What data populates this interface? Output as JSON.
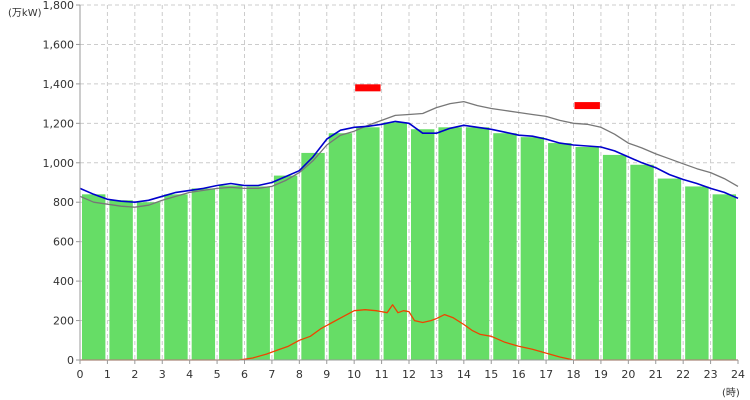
{
  "chart_data": {
    "type": "bar",
    "unit_label": "(万kW)",
    "x_unit_label": "(時)",
    "xlim": [
      0,
      24
    ],
    "ylim": [
      0,
      1800
    ],
    "y_ticks": [
      "0",
      "200",
      "400",
      "600",
      "800",
      "1,000",
      "1,200",
      "1,400",
      "1,600",
      "1,800"
    ],
    "y_tick_values": [
      0,
      200,
      400,
      600,
      800,
      1000,
      1200,
      1400,
      1600,
      1800
    ],
    "x_ticks": [
      "0",
      "1",
      "2",
      "3",
      "4",
      "5",
      "6",
      "7",
      "8",
      "9",
      "10",
      "11",
      "12",
      "13",
      "14",
      "15",
      "16",
      "17",
      "18",
      "19",
      "20",
      "21",
      "22",
      "23",
      "24"
    ],
    "grid": true,
    "colors": {
      "bars": "#66dd66",
      "blue_line": "#0000cc",
      "gray_line": "#777777",
      "orange_line": "#ee4400",
      "markers": "#ff0000",
      "grid": "#cccccc"
    },
    "bars": {
      "hours": [
        0,
        1,
        2,
        3,
        4,
        5,
        6,
        7,
        8,
        9,
        10,
        11,
        12,
        13,
        14,
        15,
        16,
        17,
        18,
        19,
        20,
        21,
        22,
        23
      ],
      "values": [
        840,
        810,
        800,
        840,
        870,
        885,
        880,
        935,
        1050,
        1150,
        1180,
        1205,
        1170,
        1180,
        1180,
        1150,
        1130,
        1100,
        1080,
        1040,
        990,
        920,
        880,
        840
      ]
    },
    "series": [
      {
        "color": "blue_line",
        "x": [
          0,
          0.5,
          1,
          1.5,
          2,
          2.5,
          3,
          3.5,
          4,
          4.5,
          5,
          5.5,
          6,
          6.5,
          7,
          7.5,
          8,
          8.5,
          9,
          9.5,
          10,
          10.5,
          11,
          11.5,
          12,
          12.5,
          13,
          13.5,
          14,
          14.5,
          15,
          15.5,
          16,
          16.5,
          17,
          17.5,
          18,
          18.5,
          19,
          19.5,
          20,
          20.5,
          21,
          21.5,
          22,
          22.5,
          23,
          23.5,
          24
        ],
        "y": [
          870,
          840,
          815,
          805,
          800,
          810,
          830,
          850,
          860,
          870,
          885,
          895,
          885,
          885,
          900,
          930,
          960,
          1030,
          1120,
          1165,
          1180,
          1185,
          1195,
          1210,
          1200,
          1150,
          1150,
          1175,
          1190,
          1180,
          1170,
          1155,
          1140,
          1135,
          1120,
          1100,
          1090,
          1085,
          1080,
          1060,
          1030,
          1000,
          975,
          940,
          915,
          895,
          870,
          850,
          820
        ]
      },
      {
        "color": "gray_line",
        "x": [
          0,
          0.5,
          1,
          1.5,
          2,
          2.5,
          3,
          3.5,
          4,
          4.5,
          5,
          5.5,
          6,
          6.5,
          7,
          7.5,
          8,
          8.5,
          9,
          9.5,
          10,
          10.5,
          11,
          11.5,
          12,
          12.5,
          13,
          13.5,
          14,
          14.5,
          15,
          15.5,
          16,
          16.5,
          17,
          17.5,
          18,
          18.5,
          19,
          19.5,
          20,
          20.5,
          21,
          21.5,
          22,
          22.5,
          23,
          23.5,
          24
        ],
        "y": [
          830,
          800,
          790,
          780,
          775,
          785,
          810,
          830,
          850,
          860,
          870,
          875,
          870,
          870,
          880,
          910,
          950,
          1010,
          1090,
          1140,
          1160,
          1190,
          1215,
          1240,
          1245,
          1250,
          1280,
          1300,
          1310,
          1290,
          1275,
          1265,
          1255,
          1245,
          1235,
          1215,
          1200,
          1195,
          1180,
          1145,
          1100,
          1075,
          1045,
          1020,
          995,
          970,
          950,
          920,
          880
        ]
      },
      {
        "color": "orange_line",
        "x": [
          0,
          1,
          2,
          3,
          4,
          5,
          5.8,
          6.3,
          6.8,
          7.2,
          7.6,
          8,
          8.4,
          8.8,
          9.2,
          9.6,
          10,
          10.4,
          10.8,
          11.2,
          11.4,
          11.6,
          11.8,
          12,
          12.2,
          12.5,
          12.8,
          13,
          13.3,
          13.6,
          14,
          14.3,
          14.6,
          15,
          15.5,
          16,
          16.5,
          17,
          17.5,
          18,
          19,
          20,
          21,
          22,
          23,
          24
        ],
        "y": [
          0,
          0,
          0,
          0,
          0,
          0,
          0,
          10,
          30,
          50,
          70,
          100,
          120,
          160,
          190,
          220,
          250,
          255,
          250,
          240,
          280,
          240,
          250,
          245,
          200,
          190,
          200,
          210,
          230,
          215,
          180,
          150,
          130,
          120,
          90,
          70,
          55,
          35,
          15,
          0,
          0,
          0,
          0,
          0,
          0,
          0
        ]
      }
    ],
    "reference_markers": [
      {
        "x_start": 10,
        "x_end": 11,
        "y": 1380
      },
      {
        "x_start": 18,
        "x_end": 19,
        "y": 1290
      }
    ]
  }
}
